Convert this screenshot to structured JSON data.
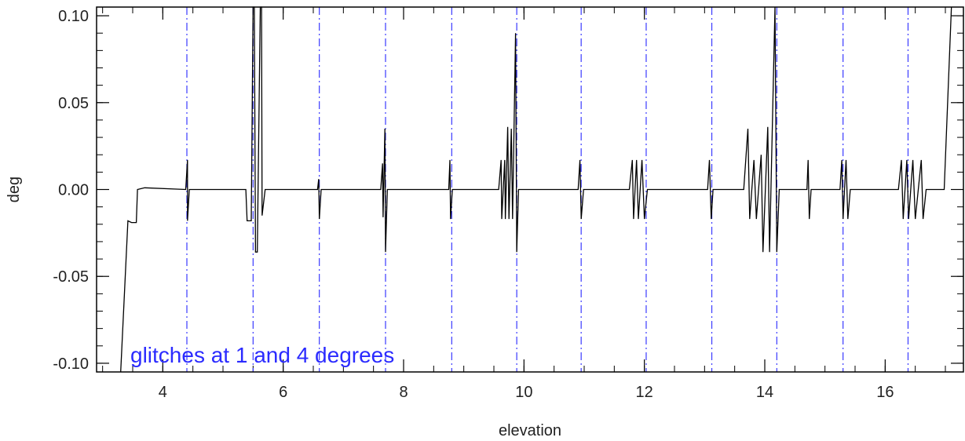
{
  "chart_data": {
    "type": "line",
    "title": "",
    "xlabel": "elevation",
    "ylabel": "deg",
    "xlim": [
      2.9,
      17.3
    ],
    "ylim": [
      -0.105,
      0.105
    ],
    "x_ticks": [
      4,
      6,
      8,
      10,
      12,
      14,
      16
    ],
    "x_tick_labels": [
      "4",
      "6",
      "8",
      "10",
      "12",
      "14",
      "16"
    ],
    "y_ticks": [
      -0.1,
      -0.05,
      0.0,
      0.05,
      0.1
    ],
    "y_tick_labels": [
      "-0.10",
      "-0.05",
      "0.00",
      "0.05",
      "0.10"
    ],
    "x_minor_step": 0.5,
    "y_minor_step": 0.01,
    "grid": false,
    "annotation": "glitches at 1 and 4 degrees",
    "colors": {
      "line": "#000000",
      "markers": "#3a3aff",
      "annotation": "#2b2bff",
      "axes": "#000000"
    },
    "vertical_markers": {
      "style": "dash-dot",
      "x": [
        4.4,
        5.5,
        6.6,
        7.7,
        8.8,
        9.88,
        10.95,
        12.03,
        13.12,
        14.2,
        15.3,
        16.38
      ]
    },
    "series": [
      {
        "values_xy": [
          [
            3.3,
            -0.105
          ],
          [
            3.42,
            -0.018
          ],
          [
            3.48,
            -0.019
          ],
          [
            3.56,
            -0.019
          ],
          [
            3.58,
            0.0
          ],
          [
            3.7,
            0.001
          ],
          [
            4.38,
            0.0
          ],
          [
            4.41,
            0.017
          ],
          [
            4.41,
            -0.018
          ],
          [
            4.44,
            0.0
          ],
          [
            5.38,
            0.0
          ],
          [
            5.4,
            -0.018
          ],
          [
            5.47,
            -0.018
          ],
          [
            5.5,
            0.105
          ],
          [
            5.52,
            0.105
          ],
          [
            5.54,
            -0.036
          ],
          [
            5.57,
            -0.036
          ],
          [
            5.62,
            0.105
          ],
          [
            5.64,
            0.105
          ],
          [
            5.65,
            -0.015
          ],
          [
            5.7,
            0.0
          ],
          [
            6.57,
            0.0
          ],
          [
            6.59,
            0.006
          ],
          [
            6.6,
            -0.017
          ],
          [
            6.63,
            0.0
          ],
          [
            7.62,
            0.0
          ],
          [
            7.65,
            0.015
          ],
          [
            7.66,
            -0.016
          ],
          [
            7.69,
            0.035
          ],
          [
            7.7,
            -0.036
          ],
          [
            7.73,
            0.0
          ],
          [
            8.75,
            0.0
          ],
          [
            8.77,
            0.017
          ],
          [
            8.78,
            -0.017
          ],
          [
            8.81,
            0.0
          ],
          [
            9.58,
            0.0
          ],
          [
            9.62,
            0.017
          ],
          [
            9.63,
            -0.017
          ],
          [
            9.68,
            0.017
          ],
          [
            9.69,
            -0.017
          ],
          [
            9.73,
            0.036
          ],
          [
            9.75,
            -0.017
          ],
          [
            9.79,
            0.035
          ],
          [
            9.81,
            -0.017
          ],
          [
            9.86,
            0.09
          ],
          [
            9.88,
            -0.036
          ],
          [
            9.91,
            0.0
          ],
          [
            10.9,
            0.0
          ],
          [
            10.93,
            0.017
          ],
          [
            10.95,
            -0.017
          ],
          [
            10.99,
            0.0
          ],
          [
            11.75,
            0.0
          ],
          [
            11.8,
            0.017
          ],
          [
            11.82,
            -0.017
          ],
          [
            11.87,
            0.017
          ],
          [
            11.9,
            -0.017
          ],
          [
            11.96,
            0.017
          ],
          [
            12.0,
            -0.017
          ],
          [
            12.05,
            0.0
          ],
          [
            13.05,
            0.0
          ],
          [
            13.08,
            0.017
          ],
          [
            13.11,
            -0.017
          ],
          [
            13.14,
            0.0
          ],
          [
            13.65,
            0.0
          ],
          [
            13.72,
            0.035
          ],
          [
            13.75,
            -0.017
          ],
          [
            13.82,
            0.017
          ],
          [
            13.86,
            -0.017
          ],
          [
            13.94,
            0.02
          ],
          [
            13.97,
            -0.036
          ],
          [
            14.05,
            0.036
          ],
          [
            14.08,
            -0.036
          ],
          [
            14.17,
            0.105
          ],
          [
            14.2,
            -0.036
          ],
          [
            14.24,
            0.0
          ],
          [
            14.7,
            0.0
          ],
          [
            14.72,
            0.017
          ],
          [
            14.74,
            -0.017
          ],
          [
            14.77,
            0.0
          ],
          [
            15.25,
            0.0
          ],
          [
            15.28,
            0.017
          ],
          [
            15.3,
            -0.017
          ],
          [
            15.35,
            0.017
          ],
          [
            15.38,
            -0.017
          ],
          [
            15.42,
            0.0
          ],
          [
            16.22,
            0.0
          ],
          [
            16.27,
            0.017
          ],
          [
            16.3,
            -0.017
          ],
          [
            16.36,
            0.017
          ],
          [
            16.39,
            -0.017
          ],
          [
            16.46,
            0.017
          ],
          [
            16.5,
            -0.017
          ],
          [
            16.6,
            0.017
          ],
          [
            16.63,
            -0.017
          ],
          [
            16.68,
            0.0
          ],
          [
            16.98,
            0.0
          ],
          [
            17.1,
            0.105
          ]
        ]
      }
    ]
  }
}
